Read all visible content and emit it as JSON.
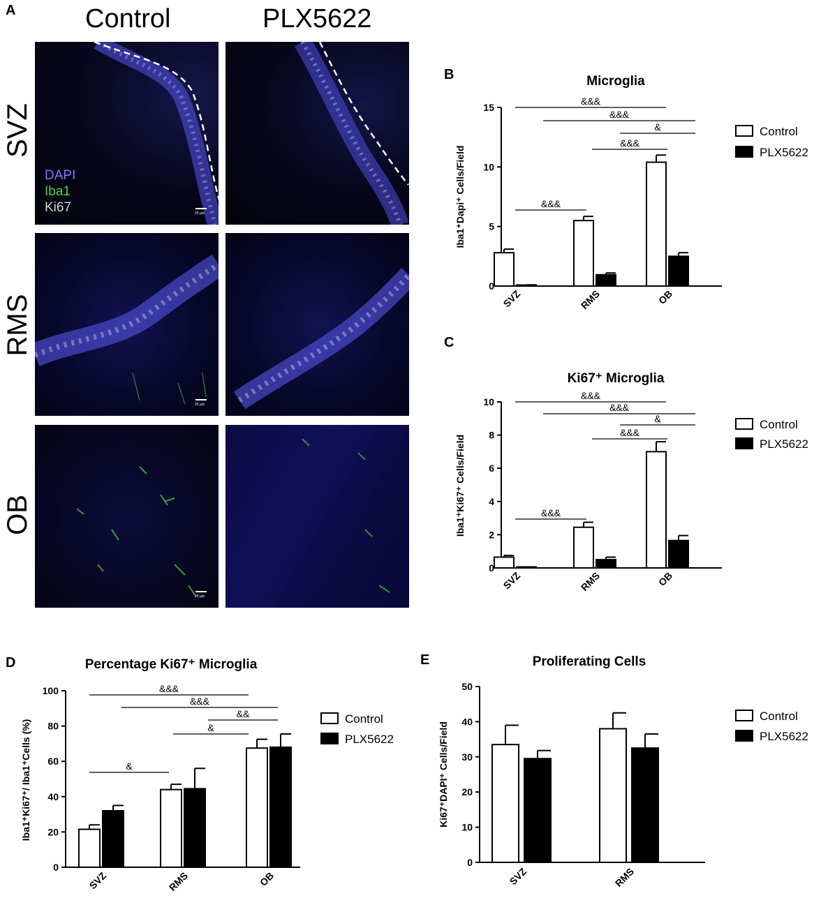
{
  "panel_a": {
    "letter": "A",
    "columns": [
      "Control",
      "PLX5622"
    ],
    "rows": [
      "SVZ",
      "RMS",
      "OB"
    ],
    "channels": [
      {
        "name": "DAPI",
        "color": "#7a7aff"
      },
      {
        "name": "Iba1",
        "color": "#4fd14f"
      },
      {
        "name": "Ki67",
        "color": "#d8d8d8"
      }
    ],
    "scale_label": "25 µm"
  },
  "chart_data": [
    {
      "id": "B",
      "letter": "B",
      "type": "bar",
      "title": "Microglia",
      "ylabel": "Iba1⁺Dapi⁺ Cells/Field",
      "categories": [
        "SVZ",
        "RMS",
        "OB"
      ],
      "ylim": [
        0,
        15
      ],
      "yticks": [
        "0",
        "5",
        "10",
        "15"
      ],
      "series": [
        {
          "name": "Control",
          "fill": "#ffffff",
          "values": [
            2.8,
            5.5,
            10.4
          ],
          "errors": [
            0.3,
            0.35,
            0.6
          ]
        },
        {
          "name": "PLX5622",
          "fill": "#000000",
          "values": [
            0.05,
            0.95,
            2.5
          ],
          "errors": [
            0.05,
            0.15,
            0.3
          ]
        }
      ],
      "significance": [
        {
          "label": "&&&"
        },
        {
          "label": "&&&"
        },
        {
          "label": "&"
        },
        {
          "label": "&&&"
        },
        {
          "label": "&&&"
        }
      ]
    },
    {
      "id": "C",
      "letter": "C",
      "type": "bar",
      "title": "Ki67⁺ Microglia",
      "ylabel": "Iba1⁺Ki67⁺ Cells/Field",
      "categories": [
        "SVZ",
        "RMS",
        "OB"
      ],
      "ylim": [
        0,
        10
      ],
      "yticks": [
        "0",
        "2",
        "4",
        "6",
        "8",
        "10"
      ],
      "series": [
        {
          "name": "Control",
          "fill": "#ffffff",
          "values": [
            0.65,
            2.45,
            7.0
          ],
          "errors": [
            0.1,
            0.3,
            0.6
          ]
        },
        {
          "name": "PLX5622",
          "fill": "#000000",
          "values": [
            0.03,
            0.5,
            1.65
          ],
          "errors": [
            0.03,
            0.15,
            0.3
          ]
        }
      ],
      "significance": [
        {
          "label": "&&&"
        },
        {
          "label": "&&&"
        },
        {
          "label": "&"
        },
        {
          "label": "&&&"
        },
        {
          "label": "&&&"
        }
      ]
    },
    {
      "id": "D",
      "letter": "D",
      "type": "bar",
      "title": "Percentage Ki67⁺ Microglia",
      "ylabel": "Iba1⁺Ki67⁺/ Iba1⁺Cells (%)",
      "categories": [
        "SVZ",
        "RMS",
        "OB"
      ],
      "ylim": [
        0,
        100
      ],
      "yticks": [
        "0",
        "20",
        "40",
        "60",
        "80",
        "100"
      ],
      "series": [
        {
          "name": "Control",
          "fill": "#ffffff",
          "values": [
            21.5,
            44,
            67.5
          ],
          "errors": [
            2.5,
            3,
            5
          ]
        },
        {
          "name": "PLX5622",
          "fill": "#000000",
          "values": [
            32,
            44.5,
            68
          ],
          "errors": [
            3,
            11.5,
            7.5
          ]
        }
      ],
      "significance": [
        {
          "label": "&&&"
        },
        {
          "label": "&&&"
        },
        {
          "label": "&&"
        },
        {
          "label": "&"
        },
        {
          "label": "&"
        }
      ]
    },
    {
      "id": "E",
      "letter": "E",
      "type": "bar",
      "title": "Proliferating Cells",
      "ylabel": "Ki67⁺DAPI⁺ Cells/Field",
      "categories": [
        "SVZ",
        "RMS"
      ],
      "ylim": [
        0,
        50
      ],
      "yticks": [
        "0",
        "10",
        "20",
        "30",
        "40",
        "50"
      ],
      "series": [
        {
          "name": "Control",
          "fill": "#ffffff",
          "values": [
            33.5,
            38
          ],
          "errors": [
            5.5,
            4.5
          ]
        },
        {
          "name": "PLX5622",
          "fill": "#000000",
          "values": [
            29.5,
            32.5
          ],
          "errors": [
            2.3,
            4
          ]
        }
      ],
      "significance": []
    }
  ]
}
